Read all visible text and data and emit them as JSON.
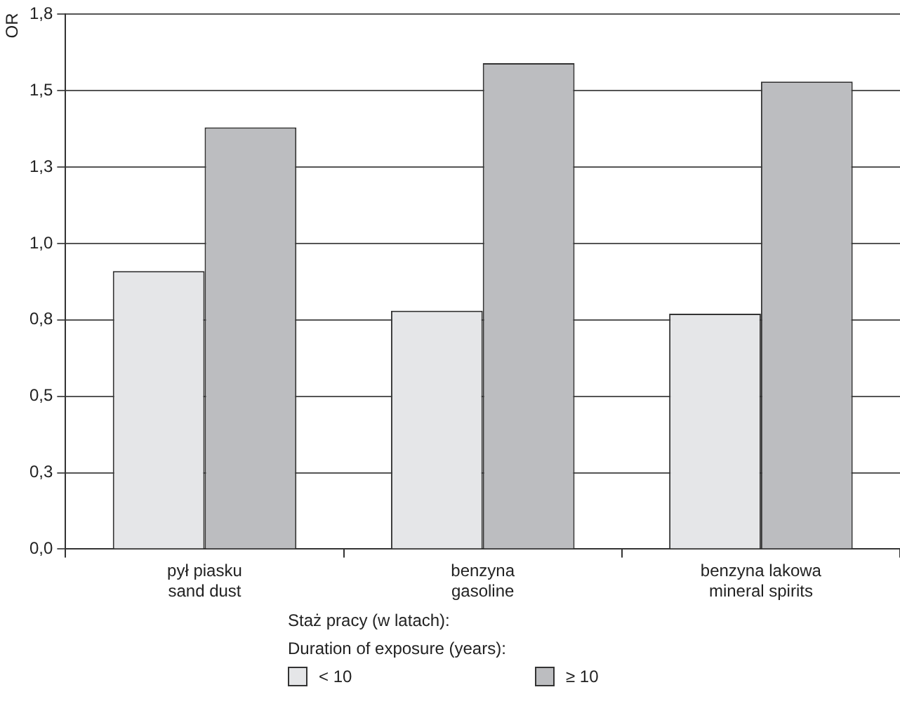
{
  "chart_data": {
    "type": "bar",
    "ylabel": "OR",
    "categories": [
      "pył piasku\nsand dust",
      "benzyna\ngasoline",
      "benzyna lakowa\nmineral spirits"
    ],
    "series": [
      {
        "name": "< 10",
        "color": "#e5e6e8",
        "values": [
          0.91,
          0.78,
          0.77
        ]
      },
      {
        "name": "≥ 10",
        "color": "#bcbdc0",
        "values": [
          1.38,
          1.59,
          1.53
        ]
      }
    ],
    "ylim": [
      0,
      1.75
    ],
    "yticks": [
      {
        "value": 0,
        "label": "0,0"
      },
      {
        "value": 0.25,
        "label": "0,3"
      },
      {
        "value": 0.5,
        "label": "0,5"
      },
      {
        "value": 0.75,
        "label": "0,8"
      },
      {
        "value": 1,
        "label": "1,0"
      },
      {
        "value": 1.25,
        "label": "1,3"
      },
      {
        "value": 1.5,
        "label": "1,5"
      },
      {
        "value": 1.75,
        "label": "1,8"
      }
    ],
    "grid": "y",
    "legend": "bottom",
    "legend_title": "Staż pracy (w latach):\nDuration of exposure (years):"
  }
}
